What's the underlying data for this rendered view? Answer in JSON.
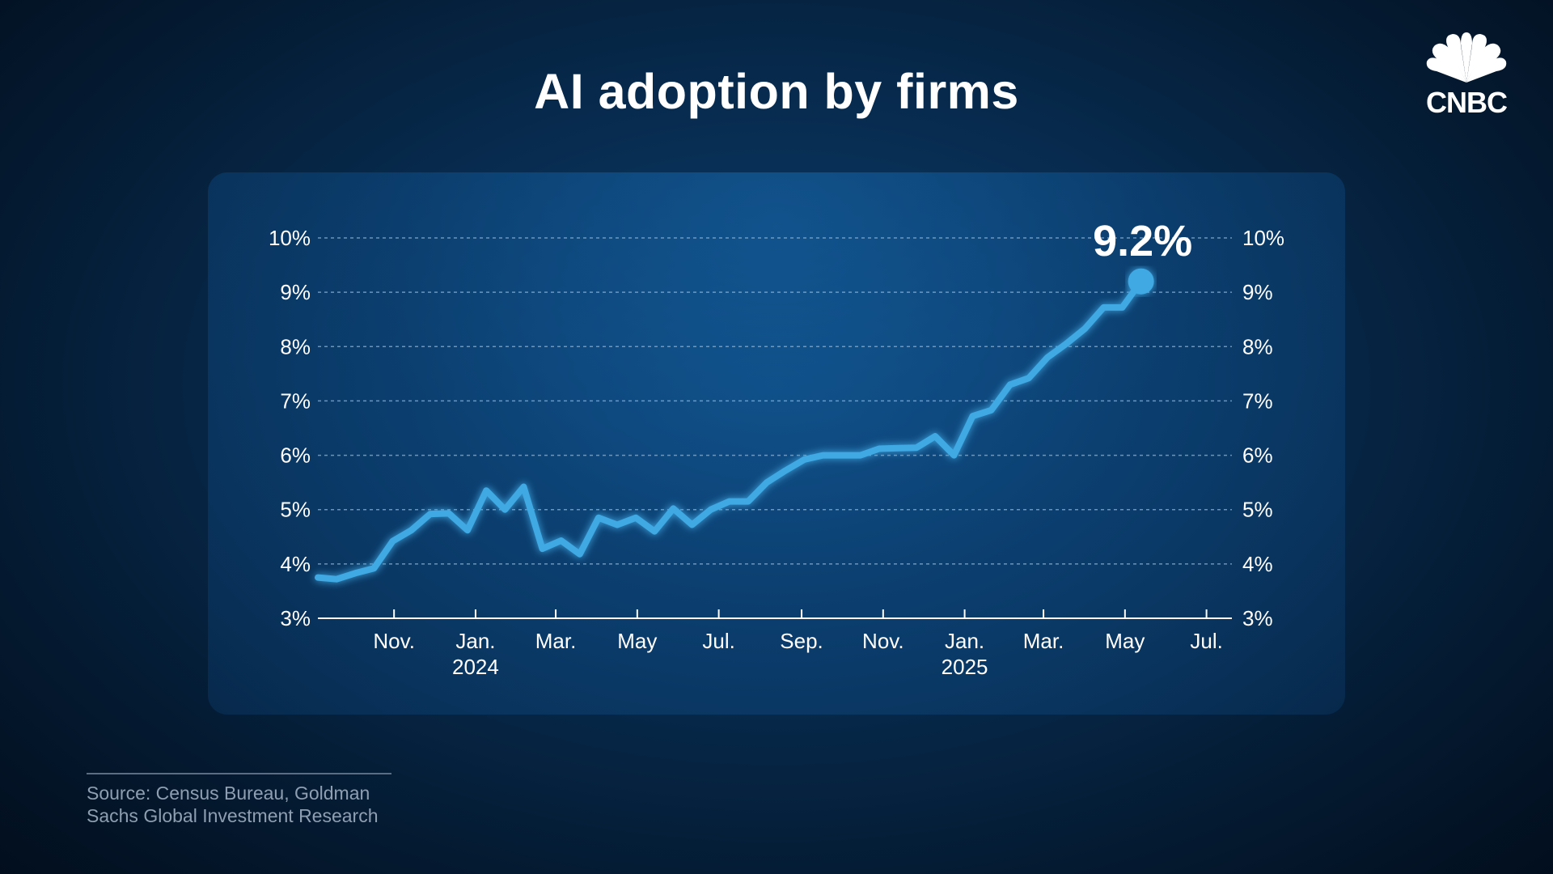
{
  "page": {
    "title": "AI adoption by firms"
  },
  "brand": {
    "logo_text": "CNBC",
    "logo_icon": "peacock-icon"
  },
  "source": {
    "line1": "Source: Census Bureau, Goldman",
    "line2": "Sachs Global Investment Research"
  },
  "colors": {
    "line": "#3fa9e3",
    "gridline": "#8cb3d6",
    "axis": "#ffffff"
  },
  "chart_data": {
    "type": "line",
    "title": "AI adoption by firms",
    "xlabel": "",
    "ylabel": "",
    "ylim": [
      3,
      10
    ],
    "y_ticks": [
      3,
      4,
      5,
      6,
      7,
      8,
      9,
      10
    ],
    "y_tick_labels": [
      "3%",
      "4%",
      "5%",
      "6%",
      "7%",
      "8%",
      "9%",
      "10%"
    ],
    "y_axes": [
      "left",
      "right"
    ],
    "grid": "horizontal dashed",
    "x_range": [
      "2023-09-05",
      "2025-07-20"
    ],
    "x_ticks": [
      {
        "date": "2023-11-01",
        "label": "Nov.",
        "sub": ""
      },
      {
        "date": "2024-01-01",
        "label": "Jan.",
        "sub": "2024"
      },
      {
        "date": "2024-03-01",
        "label": "Mar.",
        "sub": ""
      },
      {
        "date": "2024-05-01",
        "label": "May",
        "sub": ""
      },
      {
        "date": "2024-07-01",
        "label": "Jul.",
        "sub": ""
      },
      {
        "date": "2024-09-01",
        "label": "Sep.",
        "sub": ""
      },
      {
        "date": "2024-11-01",
        "label": "Nov.",
        "sub": ""
      },
      {
        "date": "2025-01-01",
        "label": "Jan.",
        "sub": "2025"
      },
      {
        "date": "2025-03-01",
        "label": "Mar.",
        "sub": ""
      },
      {
        "date": "2025-05-01",
        "label": "May",
        "sub": ""
      },
      {
        "date": "2025-07-01",
        "label": "Jul.",
        "sub": ""
      }
    ],
    "series": [
      {
        "points": [
          [
            "2023-09-05",
            3.75
          ],
          [
            "2023-09-19",
            3.72
          ],
          [
            "2023-10-03",
            3.83
          ],
          [
            "2023-10-17",
            3.92
          ],
          [
            "2023-10-31",
            4.42
          ],
          [
            "2023-11-14",
            4.62
          ],
          [
            "2023-11-28",
            4.92
          ],
          [
            "2023-12-12",
            4.93
          ],
          [
            "2023-12-26",
            4.62
          ],
          [
            "2024-01-09",
            5.35
          ],
          [
            "2024-01-23",
            5.0
          ],
          [
            "2024-02-06",
            5.42
          ],
          [
            "2024-02-20",
            4.28
          ],
          [
            "2024-03-05",
            4.43
          ],
          [
            "2024-03-19",
            4.18
          ],
          [
            "2024-04-02",
            4.85
          ],
          [
            "2024-04-16",
            4.72
          ],
          [
            "2024-04-30",
            4.85
          ],
          [
            "2024-05-14",
            4.6
          ],
          [
            "2024-05-28",
            5.02
          ],
          [
            "2024-06-11",
            4.72
          ],
          [
            "2024-06-25",
            5.0
          ],
          [
            "2024-07-09",
            5.15
          ],
          [
            "2024-07-23",
            5.15
          ],
          [
            "2024-08-06",
            5.5
          ],
          [
            "2024-08-20",
            5.72
          ],
          [
            "2024-09-03",
            5.92
          ],
          [
            "2024-09-17",
            6.0
          ],
          [
            "2024-10-01",
            6.0
          ],
          [
            "2024-10-15",
            6.0
          ],
          [
            "2024-10-29",
            6.12
          ],
          [
            "2024-11-12",
            6.13
          ],
          [
            "2024-11-26",
            6.14
          ],
          [
            "2024-12-10",
            6.35
          ],
          [
            "2024-12-24",
            6.0
          ],
          [
            "2025-01-07",
            6.72
          ],
          [
            "2025-01-21",
            6.83
          ],
          [
            "2025-02-04",
            7.3
          ],
          [
            "2025-02-18",
            7.42
          ],
          [
            "2025-03-04",
            7.8
          ],
          [
            "2025-03-18",
            8.05
          ],
          [
            "2025-04-01",
            8.33
          ],
          [
            "2025-04-15",
            8.72
          ],
          [
            "2025-04-29",
            8.72
          ],
          [
            "2025-05-13",
            9.2
          ]
        ]
      }
    ],
    "annotations": [
      {
        "x": "2025-05-13",
        "y": 9.2,
        "text": "9.2%"
      }
    ]
  }
}
